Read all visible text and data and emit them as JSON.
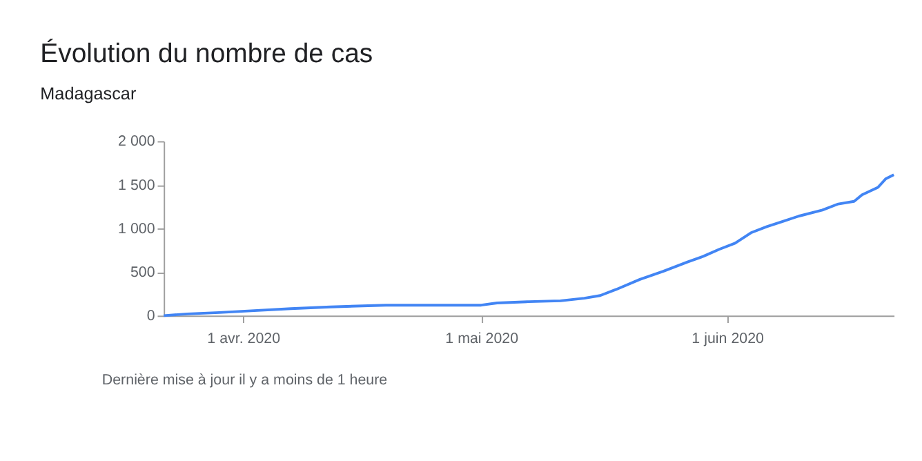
{
  "chart_data": {
    "type": "line",
    "title": "Évolution du nombre de cas",
    "subtitle": "Madagascar",
    "annotations": [
      "Dernière mise à jour il y a moins de 1 heure"
    ],
    "x": [
      "2020-03-22",
      "2020-03-25",
      "2020-03-29",
      "2020-04-02",
      "2020-04-07",
      "2020-04-12",
      "2020-04-19",
      "2020-04-25",
      "2020-05-01",
      "2020-05-03",
      "2020-05-07",
      "2020-05-11",
      "2020-05-14",
      "2020-05-16",
      "2020-05-18",
      "2020-05-21",
      "2020-05-24",
      "2020-05-27",
      "2020-05-29",
      "2020-05-31",
      "2020-06-02",
      "2020-06-04",
      "2020-06-06",
      "2020-06-08",
      "2020-06-10",
      "2020-06-13",
      "2020-06-15",
      "2020-06-17",
      "2020-06-18",
      "2020-06-20",
      "2020-06-21",
      "2020-06-22"
    ],
    "series": [
      {
        "color": "#4285f4",
        "values": [
          0,
          20,
          35,
          55,
          80,
          100,
          120,
          120,
          120,
          145,
          160,
          170,
          200,
          230,
          300,
          415,
          510,
          615,
          680,
          760,
          830,
          950,
          1020,
          1080,
          1140,
          1210,
          1280,
          1310,
          1385,
          1470,
          1570,
          1615
        ]
      }
    ],
    "xlim": [
      "2020-03-22",
      "2020-06-22"
    ],
    "xticks": [
      {
        "value": "2020-04-01",
        "label": "1 avr. 2020"
      },
      {
        "value": "2020-05-01",
        "label": "1 mai 2020"
      },
      {
        "value": "2020-06-01",
        "label": "1 juin 2020"
      }
    ],
    "ylim": [
      0,
      2000
    ],
    "yticks": [
      0,
      500,
      {
        "value": 1000,
        "label": "1 000"
      },
      {
        "value": 1500,
        "label": "1 500"
      },
      {
        "value": 2000,
        "label": "2 000"
      }
    ],
    "grid": false,
    "line_style": "solid",
    "marker": "none"
  }
}
